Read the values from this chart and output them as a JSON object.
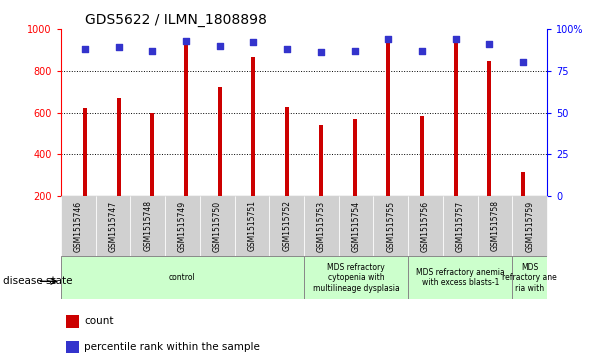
{
  "title": "GDS5622 / ILMN_1808898",
  "samples": [
    "GSM1515746",
    "GSM1515747",
    "GSM1515748",
    "GSM1515749",
    "GSM1515750",
    "GSM1515751",
    "GSM1515752",
    "GSM1515753",
    "GSM1515754",
    "GSM1515755",
    "GSM1515756",
    "GSM1515757",
    "GSM1515758",
    "GSM1515759"
  ],
  "counts": [
    620,
    670,
    600,
    930,
    720,
    865,
    625,
    540,
    570,
    945,
    585,
    940,
    845,
    315
  ],
  "percentiles": [
    88,
    89,
    87,
    93,
    90,
    92,
    88,
    86,
    87,
    94,
    87,
    94,
    91,
    80
  ],
  "bar_color": "#cc0000",
  "dot_color": "#3333cc",
  "ylim_left": [
    200,
    1000
  ],
  "ylim_right": [
    0,
    100
  ],
  "yticks_left": [
    200,
    400,
    600,
    800,
    1000
  ],
  "yticks_right": [
    0,
    25,
    50,
    75,
    100
  ],
  "ytick_labels_right": [
    "0",
    "25",
    "50",
    "75",
    "100%"
  ],
  "grid_values": [
    400,
    600,
    800
  ],
  "group_boundaries": [
    0,
    7,
    10,
    13,
    14
  ],
  "group_labels": [
    "control",
    "MDS refractory\ncytopenia with\nmultilineage dysplasia",
    "MDS refractory anemia\nwith excess blasts-1",
    "MDS\nrefractory ane\nria with"
  ],
  "group_color": "#ccffcc",
  "legend_count_label": "count",
  "legend_pct_label": "percentile rank within the sample",
  "disease_state_label": "disease state",
  "bar_width": 0.12
}
